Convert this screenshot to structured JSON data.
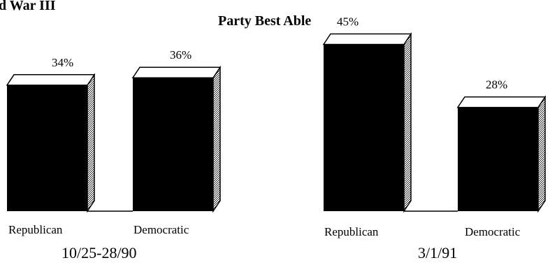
{
  "header": {
    "partial_title": "d War III",
    "chart_title": "Party Best Able"
  },
  "colors": {
    "bar_front": "#000000",
    "bar_top": "#ffffff",
    "bar_side_hatch": "#9a9a9a",
    "axis": "#000000"
  },
  "chart_data": [
    {
      "type": "bar",
      "title": "Party Best Able",
      "period": "10/25-28/90",
      "categories": [
        "Republican",
        "Democratic"
      ],
      "values": [
        34,
        36
      ],
      "value_labels": [
        "34%",
        "36%"
      ],
      "ylim": [
        0,
        50
      ],
      "grid": false,
      "legend": "none"
    },
    {
      "type": "bar",
      "title": "Party Best Able",
      "period": "3/1/91",
      "categories": [
        "Republican",
        "Democratic"
      ],
      "values": [
        45,
        28
      ],
      "value_labels": [
        "45%",
        "28%"
      ],
      "ylim": [
        0,
        50
      ],
      "grid": false,
      "legend": "none"
    }
  ]
}
